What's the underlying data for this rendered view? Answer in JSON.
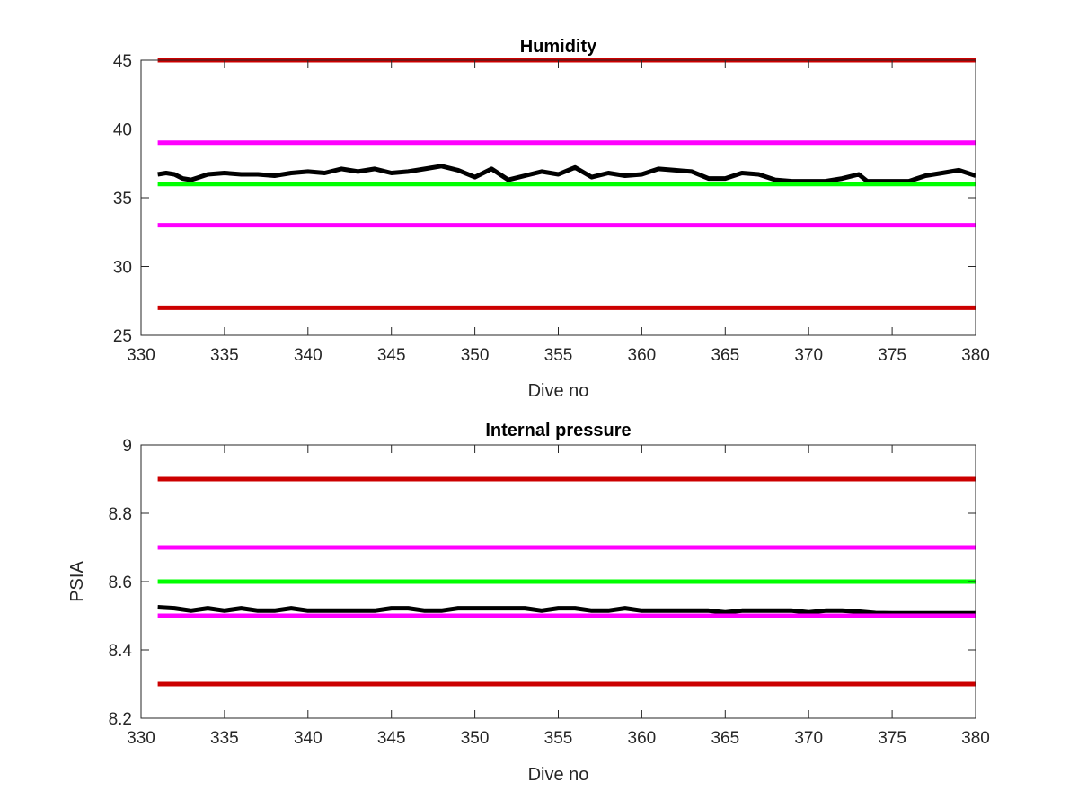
{
  "chart_data": [
    {
      "type": "line",
      "title": "Humidity",
      "xlabel": "Dive no",
      "ylabel": "",
      "xlim": [
        330,
        380
      ],
      "ylim": [
        25,
        45
      ],
      "xticks": [
        "330",
        "335",
        "340",
        "345",
        "350",
        "355",
        "360",
        "365",
        "370",
        "375",
        "380"
      ],
      "yticks": [
        "25",
        "30",
        "35",
        "40",
        "45"
      ],
      "grid": false,
      "series": [
        {
          "color": "#000000",
          "x": [
            331,
            331.5,
            332,
            332.5,
            333,
            333.5,
            334,
            335,
            336,
            337,
            338,
            339,
            340,
            341,
            342,
            343,
            344,
            345,
            346,
            347,
            348,
            349,
            350,
            351,
            352,
            353,
            354,
            355,
            356,
            357,
            358,
            359,
            360,
            361,
            362,
            363,
            364,
            365,
            366,
            367,
            368,
            369,
            370,
            371,
            372,
            373,
            373.5,
            374,
            375,
            376,
            377,
            378,
            379,
            380
          ],
          "y": [
            36.7,
            36.8,
            36.7,
            36.4,
            36.3,
            36.5,
            36.7,
            36.8,
            36.7,
            36.7,
            36.6,
            36.8,
            36.9,
            36.8,
            37.1,
            36.9,
            37.1,
            36.8,
            36.9,
            37.1,
            37.3,
            37.0,
            36.5,
            37.1,
            36.3,
            36.6,
            36.9,
            36.7,
            37.2,
            36.5,
            36.8,
            36.6,
            36.7,
            37.1,
            37.0,
            36.9,
            36.4,
            36.4,
            36.8,
            36.7,
            36.3,
            36.2,
            36.2,
            36.2,
            36.4,
            36.7,
            36.2,
            36.2,
            36.2,
            36.2,
            36.6,
            36.8,
            37.0,
            36.6
          ]
        },
        {
          "color": "#cc0000",
          "x": [
            331,
            380
          ],
          "y": [
            45,
            45
          ]
        },
        {
          "color": "#ff00ff",
          "x": [
            331,
            380
          ],
          "y": [
            39,
            39
          ]
        },
        {
          "color": "#00ff00",
          "x": [
            331,
            380
          ],
          "y": [
            36,
            36
          ]
        },
        {
          "color": "#ff00ff",
          "x": [
            331,
            380
          ],
          "y": [
            33,
            33
          ]
        },
        {
          "color": "#cc0000",
          "x": [
            331,
            380
          ],
          "y": [
            27,
            27
          ]
        }
      ]
    },
    {
      "type": "line",
      "title": "Internal pressure",
      "xlabel": "Dive no",
      "ylabel": "PSIA",
      "xlim": [
        330,
        380
      ],
      "ylim": [
        8.2,
        9
      ],
      "xticks": [
        "330",
        "335",
        "340",
        "345",
        "350",
        "355",
        "360",
        "365",
        "370",
        "375",
        "380"
      ],
      "yticks": [
        "8.2",
        "8.4",
        "8.6",
        "8.8",
        "9"
      ],
      "grid": false,
      "series": [
        {
          "color": "#000000",
          "x": [
            331,
            332,
            333,
            334,
            335,
            336,
            337,
            338,
            339,
            340,
            341,
            342,
            343,
            344,
            345,
            346,
            347,
            348,
            349,
            350,
            351,
            352,
            353,
            354,
            355,
            356,
            357,
            358,
            359,
            360,
            361,
            362,
            363,
            364,
            365,
            366,
            367,
            368,
            369,
            370,
            371,
            372,
            373,
            374,
            375,
            376,
            377,
            378,
            379,
            380
          ],
          "y": [
            8.525,
            8.522,
            8.515,
            8.522,
            8.515,
            8.522,
            8.515,
            8.515,
            8.522,
            8.515,
            8.515,
            8.515,
            8.515,
            8.515,
            8.522,
            8.522,
            8.515,
            8.515,
            8.522,
            8.522,
            8.522,
            8.522,
            8.522,
            8.515,
            8.522,
            8.522,
            8.515,
            8.515,
            8.522,
            8.515,
            8.515,
            8.515,
            8.515,
            8.515,
            8.51,
            8.515,
            8.515,
            8.515,
            8.515,
            8.51,
            8.515,
            8.515,
            8.512,
            8.508,
            8.507,
            8.507,
            8.507,
            8.507,
            8.507,
            8.507
          ]
        },
        {
          "color": "#cc0000",
          "x": [
            331,
            380
          ],
          "y": [
            8.9,
            8.9
          ]
        },
        {
          "color": "#ff00ff",
          "x": [
            331,
            380
          ],
          "y": [
            8.7,
            8.7
          ]
        },
        {
          "color": "#00ff00",
          "x": [
            331,
            380
          ],
          "y": [
            8.6,
            8.6
          ]
        },
        {
          "color": "#ff00ff",
          "x": [
            331,
            380
          ],
          "y": [
            8.5,
            8.5
          ]
        },
        {
          "color": "#cc0000",
          "x": [
            331,
            380
          ],
          "y": [
            8.3,
            8.3
          ]
        }
      ]
    }
  ]
}
